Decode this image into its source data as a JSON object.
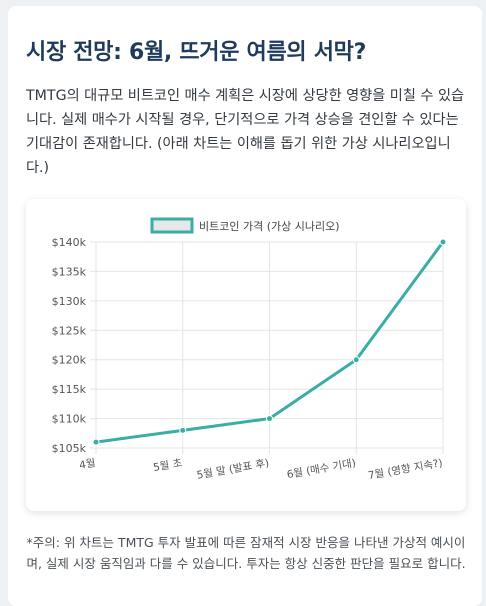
{
  "page": {
    "title": "시장 전망: 6월, 뜨거운 여름의 서막?",
    "intro": "TMTG의 대규모 비트코인 매수 계획은 시장에 상당한 영향을 미칠 수 있습니다. 실제 매수가 시작될 경우, 단기적으로 가격 상승을 견인할 수 있다는 기대감이 존재합니다. (아래 차트는 이해를 돕기 위한 가상 시나리오입니다.)",
    "note": "*주의: 위 차트는 TMTG 투자 발표에 따른 잠재적 시장 반응을 나타낸 가상적 예시이며, 실제 시장 움직임과 다를 수 있습니다. 투자는 항상 신중한 판단을 필요로 합니다."
  },
  "colors": {
    "line": "#3aada6",
    "legend_fill": "#e6e7e8",
    "title": "#1f3a5a"
  },
  "chart_data": {
    "type": "line",
    "categories": [
      "4월",
      "5월 초",
      "5월 말 (발표 후)",
      "6월 (매수 기대)",
      "7월 (영향 지속?)"
    ],
    "series": [
      {
        "name": "비트코인 가격 (가상 시나리오)",
        "values": [
          106000,
          108000,
          110000,
          120000,
          140000
        ]
      }
    ],
    "y_ticks": [
      "$105k",
      "$110k",
      "$115k",
      "$120k",
      "$125k",
      "$130k",
      "$135k",
      "$140k"
    ],
    "ylim": [
      105000,
      140000
    ],
    "grid": true,
    "legend": "top-center"
  }
}
